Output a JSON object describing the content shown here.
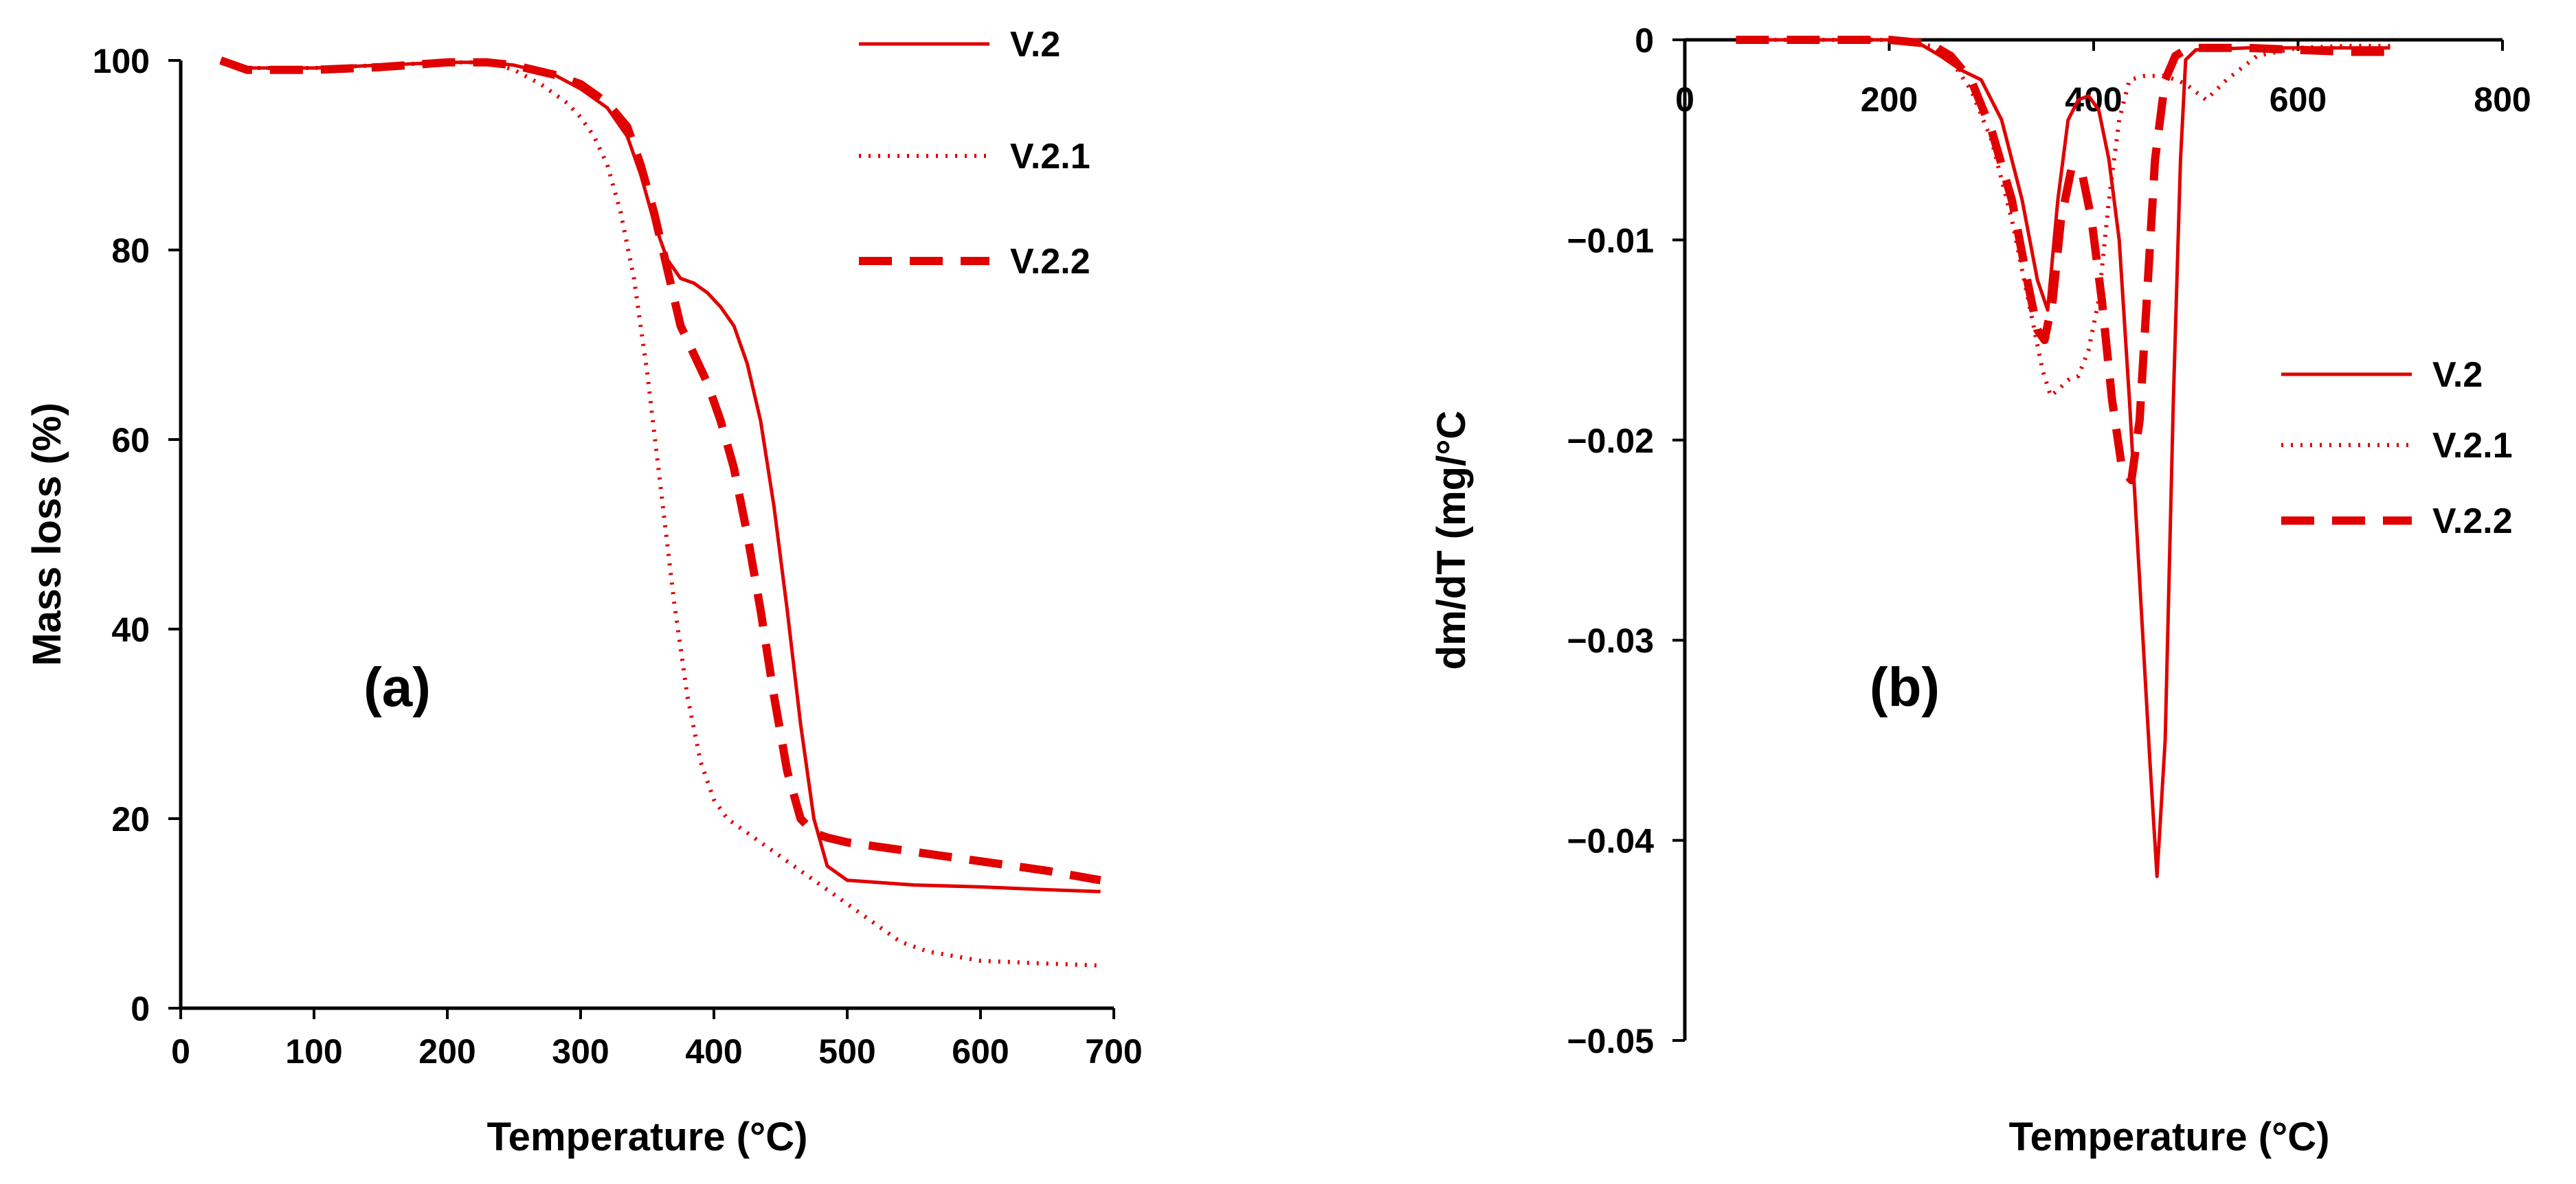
{
  "colors": {
    "series": "#e00000",
    "axis": "#000000",
    "background": "#ffffff"
  },
  "chart_data": [
    {
      "type": "line",
      "panel_label": "(a)",
      "title": "",
      "xlabel": "Temperature (°C)",
      "ylabel": "Mass loss (%)",
      "xlim": [
        0,
        700
      ],
      "ylim": [
        0,
        100
      ],
      "xticks": [
        0,
        100,
        200,
        300,
        400,
        500,
        600,
        700
      ],
      "yticks": [
        0,
        20,
        40,
        60,
        80,
        100
      ],
      "grid": false,
      "legend_position": "top-right",
      "series": [
        {
          "name": "V.2",
          "style": "solid",
          "x": [
            30,
            40,
            50,
            100,
            150,
            200,
            230,
            250,
            280,
            300,
            320,
            335,
            345,
            355,
            365,
            375,
            385,
            395,
            405,
            415,
            425,
            435,
            445,
            455,
            465,
            475,
            485,
            500,
            550,
            600,
            650,
            690
          ],
          "y": [
            100,
            99.5,
            99.2,
            99.2,
            99.5,
            99.8,
            99.8,
            99.5,
            98.5,
            97,
            95,
            92,
            88,
            83,
            79,
            77,
            76.5,
            75.5,
            74,
            72,
            68,
            62,
            53,
            42,
            30,
            20,
            15,
            13.5,
            13,
            12.8,
            12.5,
            12.3
          ]
        },
        {
          "name": "V.2.1",
          "style": "dotted",
          "x": [
            30,
            40,
            50,
            100,
            150,
            200,
            230,
            250,
            270,
            290,
            300,
            310,
            320,
            330,
            340,
            350,
            360,
            370,
            380,
            390,
            400,
            410,
            420,
            440,
            460,
            480,
            500,
            520,
            540,
            560,
            600,
            650,
            690
          ],
          "y": [
            100,
            99.5,
            99.2,
            99.2,
            99.5,
            99.8,
            99.8,
            99,
            97.5,
            95.5,
            94,
            92,
            89,
            84,
            77,
            67,
            55,
            43,
            33,
            26,
            22,
            20,
            19,
            17,
            15,
            13,
            11,
            9,
            7,
            6,
            5,
            4.7,
            4.5
          ]
        },
        {
          "name": "V.2.2",
          "style": "dashed",
          "x": [
            30,
            40,
            50,
            100,
            150,
            200,
            230,
            250,
            280,
            300,
            320,
            335,
            345,
            355,
            365,
            375,
            385,
            395,
            405,
            415,
            425,
            435,
            445,
            455,
            465,
            475,
            485,
            500,
            550,
            600,
            650,
            690
          ],
          "y": [
            100,
            99.5,
            99,
            99,
            99.3,
            99.8,
            99.8,
            99.5,
            98.5,
            97.5,
            95.5,
            93,
            89,
            84,
            78,
            72,
            69,
            66,
            62,
            57,
            50,
            42,
            33,
            25,
            20,
            18.5,
            18,
            17.5,
            16.5,
            15.5,
            14.5,
            13.5
          ]
        }
      ]
    },
    {
      "type": "line",
      "panel_label": "(b)",
      "title": "",
      "xlabel": "Temperature (°C)",
      "ylabel": "dm/dT (mg/°C",
      "xlim": [
        0,
        800
      ],
      "ylim": [
        -0.05,
        0
      ],
      "xticks": [
        0,
        200,
        400,
        600,
        800
      ],
      "yticks": [
        0,
        -0.01,
        -0.02,
        -0.03,
        -0.04,
        -0.05
      ],
      "ytick_labels": [
        "0",
        "−0.01",
        "−0.02",
        "−0.03",
        "−0.04",
        "−0.05"
      ],
      "grid": false,
      "legend_position": "right",
      "series": [
        {
          "name": "V.2",
          "style": "solid",
          "x": [
            50,
            100,
            200,
            230,
            250,
            270,
            290,
            310,
            330,
            345,
            355,
            365,
            375,
            385,
            395,
            405,
            415,
            425,
            435,
            445,
            455,
            462,
            470,
            478,
            485,
            490,
            500,
            550,
            600,
            650,
            690
          ],
          "y": [
            0,
            0,
            0,
            -0.0002,
            -0.0008,
            -0.0015,
            -0.002,
            -0.004,
            -0.008,
            -0.012,
            -0.0135,
            -0.008,
            -0.004,
            -0.003,
            -0.0028,
            -0.0035,
            -0.006,
            -0.01,
            -0.018,
            -0.027,
            -0.036,
            -0.0418,
            -0.035,
            -0.018,
            -0.006,
            -0.001,
            -0.0005,
            -0.0004,
            -0.0004,
            -0.0004,
            -0.0004
          ]
        },
        {
          "name": "V.2.1",
          "style": "dotted",
          "x": [
            50,
            100,
            200,
            240,
            260,
            280,
            300,
            320,
            340,
            350,
            358,
            365,
            375,
            385,
            395,
            405,
            415,
            425,
            435,
            450,
            470,
            490,
            510,
            530,
            560,
            600,
            650,
            690
          ],
          "y": [
            0,
            0,
            0,
            -0.0003,
            -0.001,
            -0.0025,
            -0.005,
            -0.009,
            -0.014,
            -0.0165,
            -0.0178,
            -0.0175,
            -0.017,
            -0.0168,
            -0.0155,
            -0.013,
            -0.008,
            -0.004,
            -0.002,
            -0.0018,
            -0.0018,
            -0.0022,
            -0.003,
            -0.002,
            -0.0008,
            -0.0004,
            -0.0003,
            -0.0003
          ]
        },
        {
          "name": "V.2.2",
          "style": "dashed",
          "x": [
            50,
            100,
            200,
            240,
            260,
            280,
            300,
            320,
            335,
            345,
            352,
            360,
            368,
            378,
            388,
            398,
            408,
            418,
            428,
            437,
            445,
            452,
            460,
            470,
            480,
            490,
            500,
            550,
            600,
            650,
            690
          ],
          "y": [
            0,
            0,
            0,
            -0.0002,
            -0.0008,
            -0.002,
            -0.0045,
            -0.008,
            -0.012,
            -0.0145,
            -0.015,
            -0.013,
            -0.009,
            -0.0065,
            -0.0065,
            -0.009,
            -0.013,
            -0.018,
            -0.0215,
            -0.022,
            -0.019,
            -0.013,
            -0.006,
            -0.002,
            -0.0008,
            -0.0005,
            -0.0004,
            -0.0004,
            -0.0005,
            -0.0006,
            -0.0006
          ]
        }
      ]
    }
  ]
}
